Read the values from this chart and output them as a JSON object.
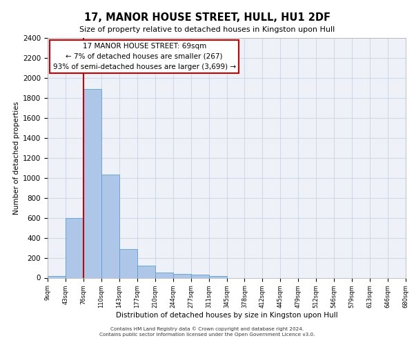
{
  "title": "17, MANOR HOUSE STREET, HULL, HU1 2DF",
  "subtitle": "Size of property relative to detached houses in Kingston upon Hull",
  "xlabel": "Distribution of detached houses by size in Kingston upon Hull",
  "ylabel": "Number of detached properties",
  "bar_color": "#aec6e8",
  "bar_edge_color": "#5a9fd4",
  "grid_color": "#d0d8e8",
  "background_color": "#eef2f8",
  "bin_labels": [
    "9sqm",
    "43sqm",
    "76sqm",
    "110sqm",
    "143sqm",
    "177sqm",
    "210sqm",
    "244sqm",
    "277sqm",
    "311sqm",
    "345sqm",
    "378sqm",
    "412sqm",
    "445sqm",
    "479sqm",
    "512sqm",
    "546sqm",
    "579sqm",
    "613sqm",
    "646sqm",
    "680sqm"
  ],
  "bar_heights": [
    20,
    600,
    1890,
    1030,
    290,
    120,
    50,
    40,
    28,
    20,
    0,
    0,
    0,
    0,
    0,
    0,
    0,
    0,
    0,
    0
  ],
  "ylim": [
    0,
    2400
  ],
  "yticks": [
    0,
    200,
    400,
    600,
    800,
    1000,
    1200,
    1400,
    1600,
    1800,
    2000,
    2200,
    2400
  ],
  "property_line_x": 1.5,
  "annotation_text": "17 MANOR HOUSE STREET: 69sqm\n← 7% of detached houses are smaller (267)\n93% of semi-detached houses are larger (3,699) →",
  "annotation_box_color": "#ffffff",
  "annotation_box_edge": "#cc0000",
  "property_line_color": "#cc0000",
  "footer_line1": "Contains HM Land Registry data © Crown copyright and database right 2024.",
  "footer_line2": "Contains public sector information licensed under the Open Government Licence v3.0."
}
